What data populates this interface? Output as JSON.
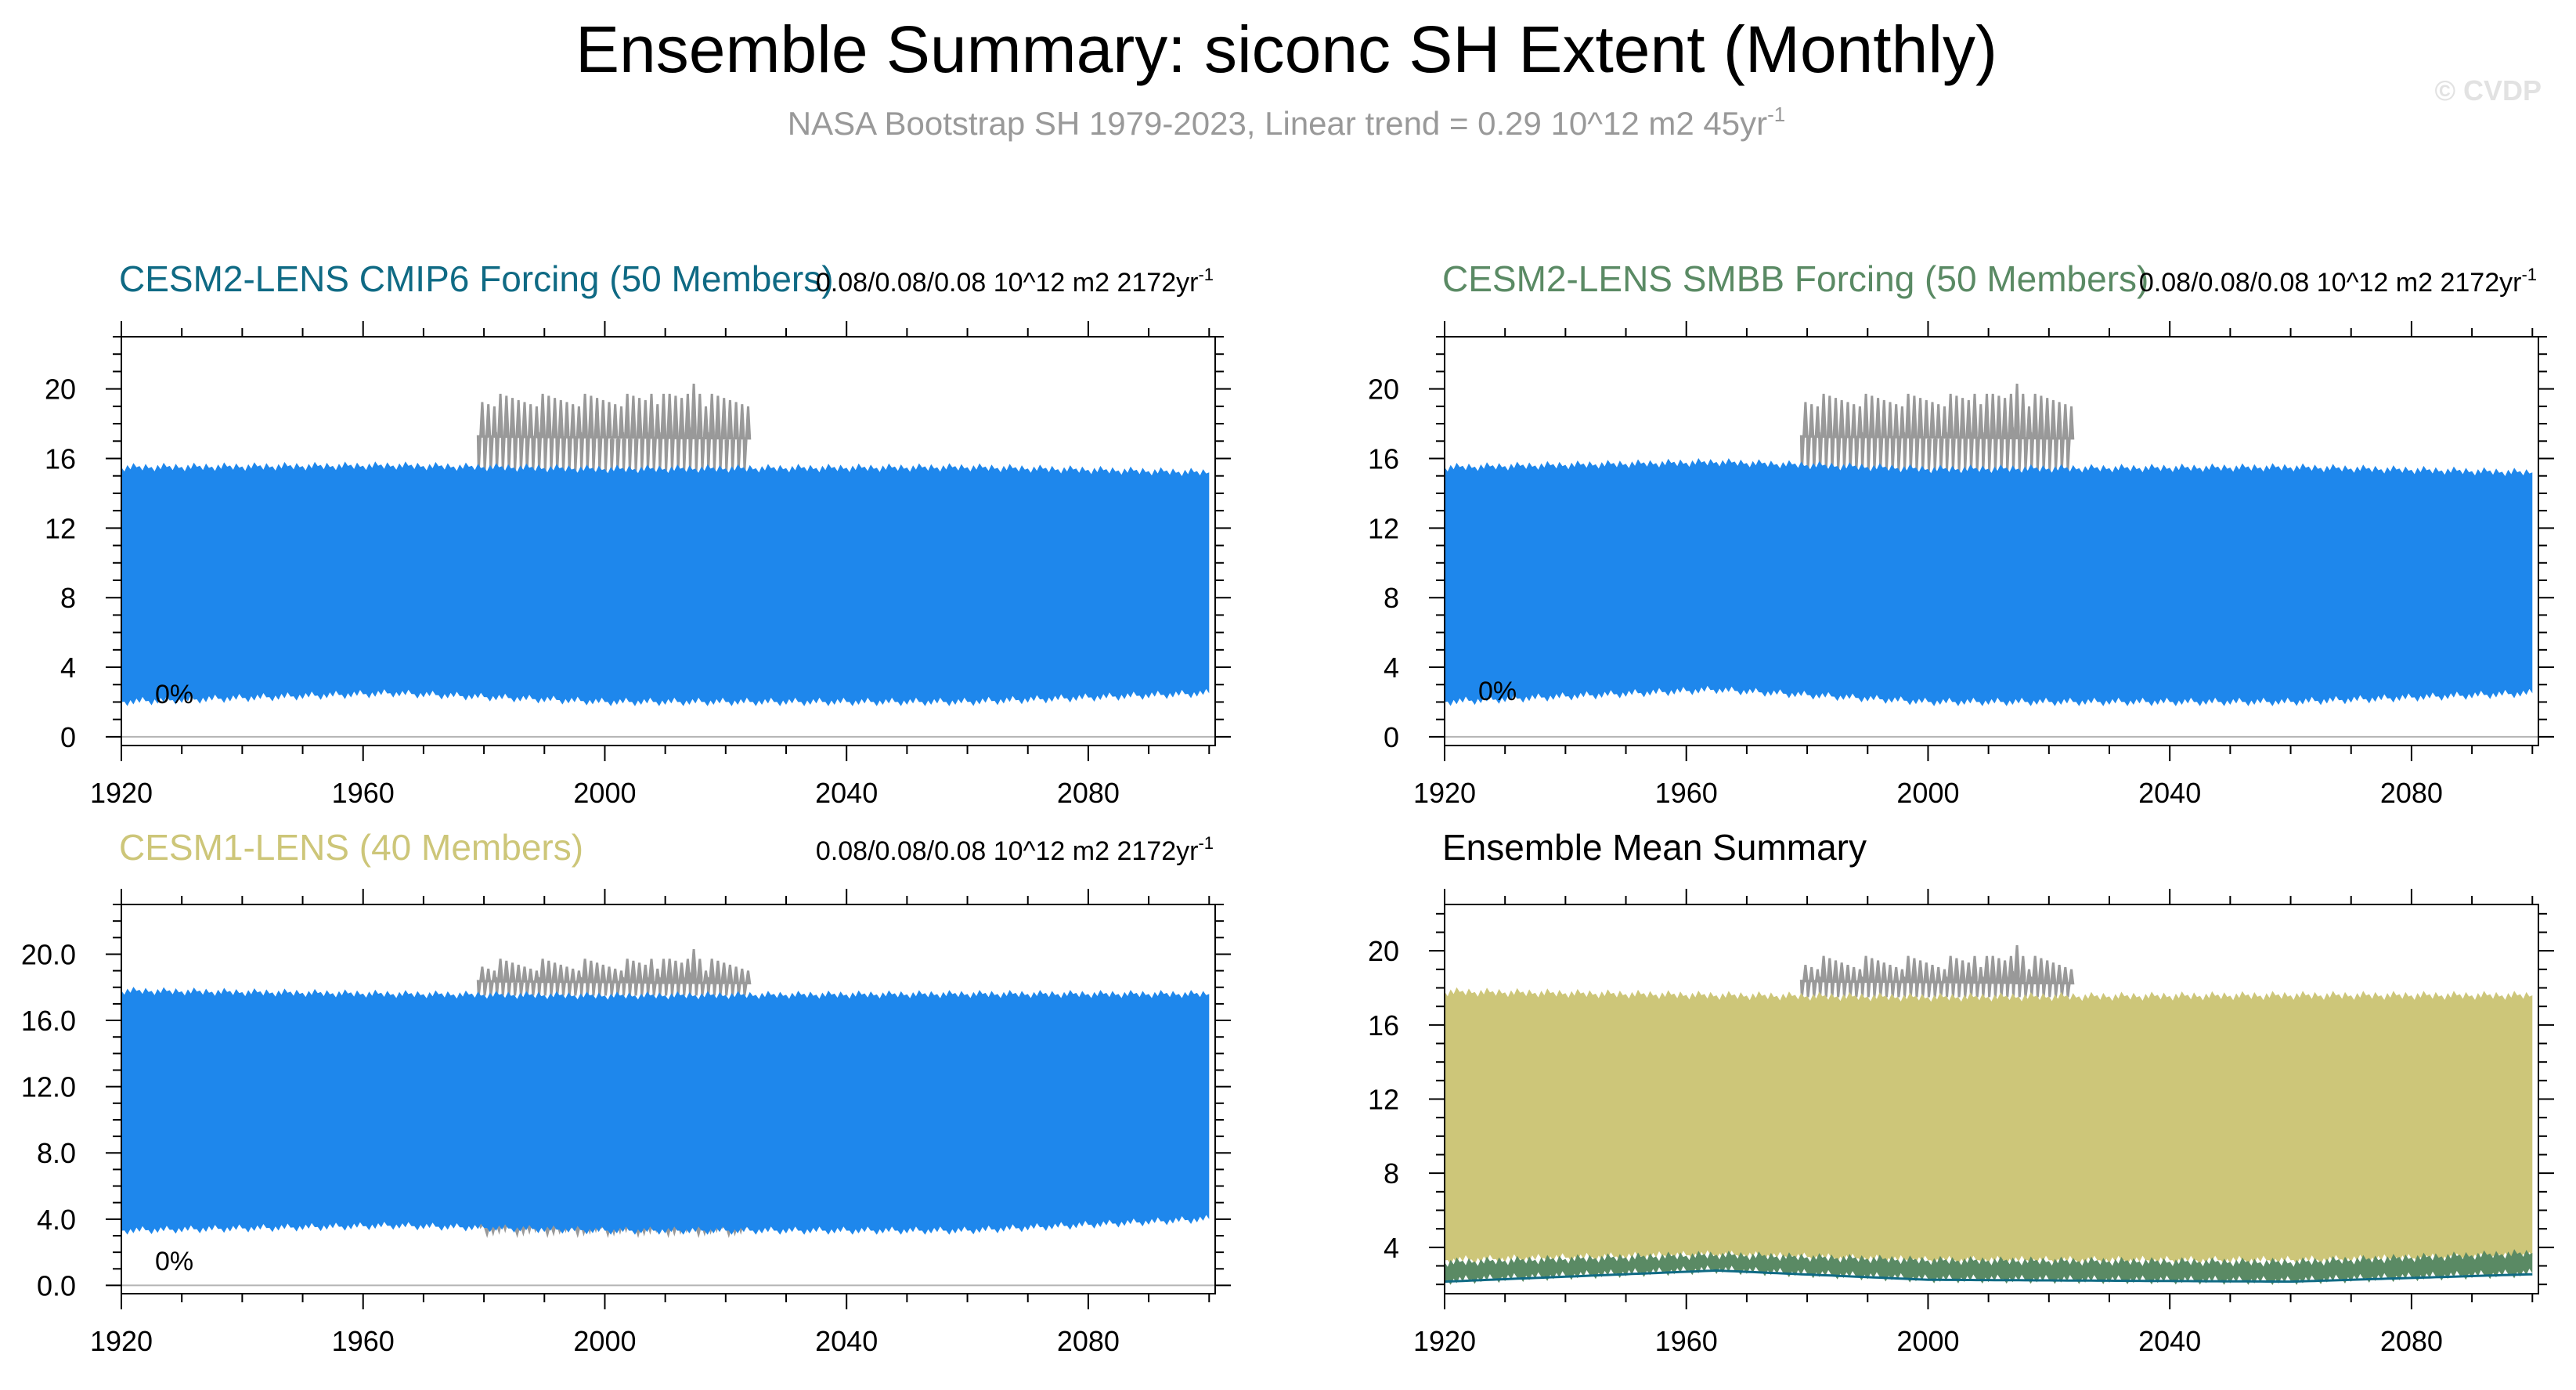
{
  "figure": {
    "title": "Ensemble Summary: siconc SH Extent (Monthly)",
    "subtitle_main": "NASA Bootstrap SH 1979-2023, Linear trend = 0.29 10^12 m2 45yr",
    "subtitle_sup": "-1",
    "watermark": "© CVDP"
  },
  "colors": {
    "obs": "#999999",
    "ens_range": "#1e87ec",
    "cmip6": "#0f6a84",
    "smbb": "#5a8a64",
    "cesm1": "#cdc679",
    "axis": "#000000",
    "zero_line": "#b4b4b4"
  },
  "panels": [
    {
      "title": "CESM2-LENS CMIP6 Forcing (50 Members)",
      "stat_main": "0.08/0.08/0.08 10^12 m2 2172yr",
      "stat_sup": "-1",
      "pct_label": "0%",
      "ytick_labels": [
        "0",
        "4",
        "8",
        "12",
        "16",
        "20"
      ],
      "xtick_labels": [
        "1920",
        "1960",
        "2000",
        "2040",
        "2080"
      ]
    },
    {
      "title": "CESM2-LENS SMBB Forcing (50 Members)",
      "stat_main": "0.08/0.08/0.08 10^12 m2 2172yr",
      "stat_sup": "-1",
      "pct_label": "0%",
      "ytick_labels": [
        "0",
        "4",
        "8",
        "12",
        "16",
        "20"
      ],
      "xtick_labels": [
        "1920",
        "1960",
        "2000",
        "2040",
        "2080"
      ]
    },
    {
      "title": "CESM1-LENS (40 Members)",
      "stat_main": "0.08/0.08/0.08 10^12 m2 2172yr",
      "stat_sup": "-1",
      "pct_label": "0%",
      "ytick_labels": [
        "0.0",
        "4.0",
        "8.0",
        "12.0",
        "16.0",
        "20.0"
      ],
      "xtick_labels": [
        "1920",
        "1960",
        "2000",
        "2040",
        "2080"
      ]
    },
    {
      "title": "Ensemble Mean Summary",
      "stat_main": "",
      "stat_sup": "",
      "pct_label": "",
      "ytick_labels": [
        "4",
        "8",
        "12",
        "16",
        "20"
      ],
      "xtick_labels": [
        "1920",
        "1960",
        "2000",
        "2040",
        "2080"
      ]
    }
  ],
  "chart_data": [
    {
      "type": "area",
      "panel": "CESM2-LENS CMIP6 Forcing (50 Members)",
      "xlim": [
        1920,
        2101
      ],
      "ylim": [
        -0.5,
        23
      ],
      "xticks": [
        1920,
        1960,
        2000,
        2040,
        2080
      ],
      "yticks": [
        0,
        4,
        8,
        12,
        16,
        20
      ],
      "observations": {
        "years": [
          1979,
          2023
        ],
        "winter_max": 19.3,
        "winter_peak": 20.6,
        "summer_min": 15.3
      },
      "ensemble_range": {
        "fill": "ens_range",
        "summer_min": [
          [
            1920,
            2.0
          ],
          [
            1965,
            2.5
          ],
          [
            2000,
            2.0
          ],
          [
            2060,
            2.0
          ],
          [
            2100,
            2.5
          ]
        ],
        "winter_max": [
          [
            1920,
            15.5
          ],
          [
            1965,
            15.6
          ],
          [
            2000,
            15.4
          ],
          [
            2060,
            15.5
          ],
          [
            2100,
            15.2
          ]
        ]
      },
      "mean": null
    },
    {
      "type": "area",
      "panel": "CESM2-LENS SMBB Forcing (50 Members)",
      "xlim": [
        1920,
        2101
      ],
      "ylim": [
        -0.5,
        23
      ],
      "xticks": [
        1920,
        1960,
        2000,
        2040,
        2080
      ],
      "yticks": [
        0,
        4,
        8,
        12,
        16,
        20
      ],
      "observations": {
        "years": [
          1979,
          2023
        ],
        "winter_max": 19.3,
        "winter_peak": 20.6,
        "summer_min": 15.3
      },
      "ensemble_range": {
        "fill": "ens_range",
        "summer_min": [
          [
            1920,
            2.0
          ],
          [
            1965,
            2.7
          ],
          [
            2000,
            2.0
          ],
          [
            2060,
            2.0
          ],
          [
            2100,
            2.5
          ]
        ],
        "winter_max": [
          [
            1920,
            15.5
          ],
          [
            1965,
            15.8
          ],
          [
            2000,
            15.4
          ],
          [
            2060,
            15.5
          ],
          [
            2100,
            15.2
          ]
        ]
      },
      "mean": null
    },
    {
      "type": "area",
      "panel": "CESM1-LENS (40 Members)",
      "xlim": [
        1920,
        2101
      ],
      "ylim": [
        -0.5,
        23
      ],
      "xticks": [
        1920,
        1960,
        2000,
        2040,
        2080
      ],
      "yticks": [
        0,
        4,
        8,
        12,
        16,
        20
      ],
      "observations": {
        "years": [
          1979,
          2023
        ],
        "winter_max": 19.3,
        "winter_peak": 20.6,
        "summer_min": 17.5,
        "low_min": 3.2
      },
      "ensemble_range": {
        "fill": "ens_range",
        "summer_min": [
          [
            1920,
            3.3
          ],
          [
            1965,
            3.6
          ],
          [
            2000,
            3.3
          ],
          [
            2060,
            3.3
          ],
          [
            2100,
            4.0
          ]
        ],
        "winter_max": [
          [
            1920,
            17.8
          ],
          [
            1965,
            17.6
          ],
          [
            2000,
            17.5
          ],
          [
            2060,
            17.6
          ],
          [
            2100,
            17.6
          ]
        ]
      },
      "mean": null
    },
    {
      "type": "area",
      "panel": "Ensemble Mean Summary",
      "xlim": [
        1920,
        2101
      ],
      "ylim": [
        1.5,
        22.5
      ],
      "xticks": [
        1920,
        1960,
        2000,
        2040,
        2080
      ],
      "yticks": [
        4,
        8,
        12,
        16,
        20
      ],
      "observations": {
        "years": [
          1979,
          2023
        ],
        "winter_max": 19.3,
        "winter_peak": 20.6,
        "summer_min": 17.5
      },
      "ensemble_range": {
        "fill": "cesm1",
        "summer_min": [
          [
            1920,
            3.3
          ],
          [
            1965,
            3.6
          ],
          [
            2000,
            3.3
          ],
          [
            2060,
            3.3
          ],
          [
            2100,
            3.5
          ]
        ],
        "winter_max": [
          [
            1920,
            17.8
          ],
          [
            1965,
            17.6
          ],
          [
            2000,
            17.5
          ],
          [
            2060,
            17.6
          ],
          [
            2100,
            17.6
          ]
        ]
      },
      "mean": {
        "fill": "smbb",
        "summer_min": [
          [
            1920,
            2.2
          ],
          [
            1965,
            2.8
          ],
          [
            2000,
            2.3
          ],
          [
            2060,
            2.2
          ],
          [
            2100,
            2.6
          ]
        ],
        "summer_top": [
          [
            1920,
            3.2
          ],
          [
            1965,
            3.6
          ],
          [
            2000,
            3.3
          ],
          [
            2060,
            3.2
          ],
          [
            2100,
            3.7
          ]
        ]
      }
    }
  ]
}
